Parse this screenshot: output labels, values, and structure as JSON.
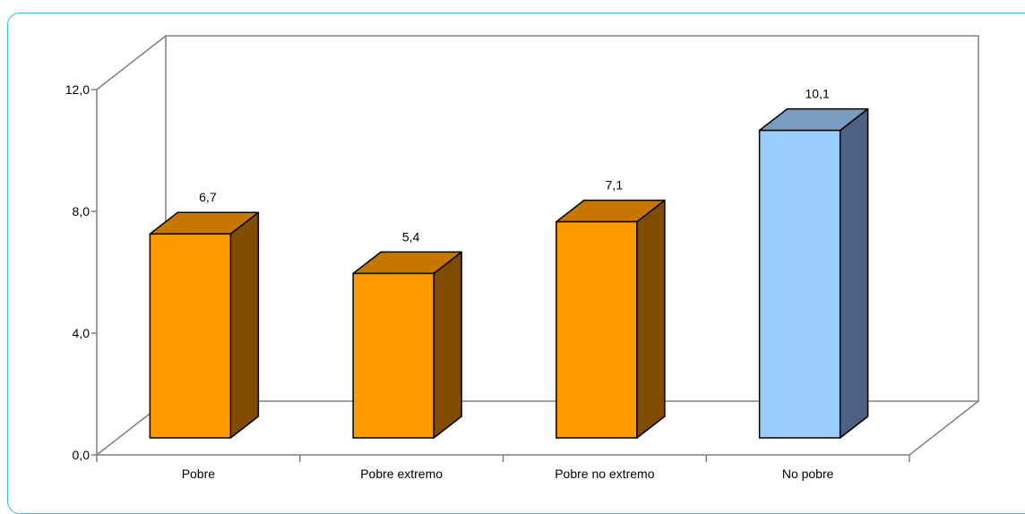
{
  "chart_data": {
    "type": "bar",
    "categories": [
      "Pobre",
      "Pobre extremo",
      "Pobre no  extremo",
      "No pobre"
    ],
    "values": [
      6.7,
      5.4,
      7.1,
      10.1
    ],
    "value_labels": [
      "6,7",
      "5,4",
      "7,1",
      "10,1"
    ],
    "ylim": [
      0,
      12
    ],
    "yticks": [
      0,
      4,
      8,
      12
    ],
    "ytick_labels": [
      "0,0",
      "4,0",
      "8,0",
      "12,0"
    ],
    "grid": false,
    "legend": "none",
    "colors": {
      "poor_front": "#ff9900",
      "poor_top": "#c67700",
      "poor_side": "#804c00",
      "nonpoor_front": "#99ccff",
      "nonpoor_top": "#7a9cc0",
      "nonpoor_side": "#4d6282",
      "wall_line": "#808080"
    }
  }
}
